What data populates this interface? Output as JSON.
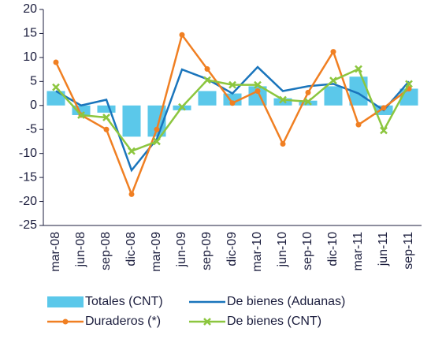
{
  "chart_data": {
    "type": "combo",
    "categories": [
      "mar-08",
      "jun-08",
      "sep-08",
      "dic-08",
      "mar-09",
      "jun-09",
      "sep-09",
      "dic-09",
      "mar-10",
      "jun-10",
      "sep-10",
      "dic-10",
      "mar-11",
      "jun-11",
      "sep-11"
    ],
    "series": [
      {
        "name": "Totales (CNT)",
        "type": "bar",
        "color": "#5bc8ea",
        "values": [
          3,
          -2,
          -1.5,
          -6.5,
          -6.5,
          -1,
          3,
          2.5,
          4,
          1.5,
          1,
          4,
          6,
          -2,
          3.5
        ]
      },
      {
        "name": "De bienes (Aduanas)",
        "type": "line",
        "color": "#1a75bc",
        "values": [
          3,
          0,
          1.2,
          -13.5,
          -7,
          7.5,
          5.5,
          2.5,
          8,
          3,
          4,
          4.5,
          2.5,
          -1,
          5
        ]
      },
      {
        "name": "Duraderos (*)",
        "type": "line",
        "marker": "circle",
        "color": "#f07f22",
        "values": [
          9,
          -2,
          -5,
          -18.5,
          -5,
          14.7,
          7.6,
          0.5,
          3,
          -8,
          2.7,
          11.2,
          -4,
          -0.5,
          3.5
        ]
      },
      {
        "name": "De bienes (CNT)",
        "type": "line",
        "marker": "x",
        "color": "#8cc63f",
        "values": [
          3.8,
          -2,
          -2.5,
          -9.5,
          -7.5,
          -0.3,
          5.3,
          4.3,
          4.3,
          1.2,
          0.8,
          5.2,
          7.6,
          -5.2,
          4.5
        ]
      }
    ],
    "ylim": [
      -25,
      20
    ],
    "yticks": [
      -25,
      -20,
      -15,
      -10,
      -5,
      0,
      5,
      10,
      15,
      20
    ]
  }
}
